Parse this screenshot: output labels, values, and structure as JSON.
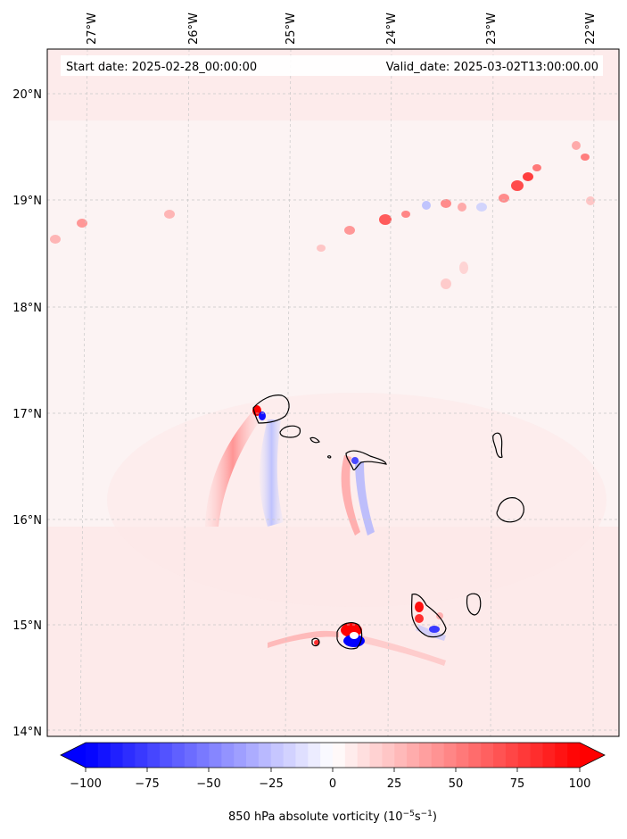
{
  "map": {
    "start_label": "Start date: 2025-02-28_00:00:00",
    "valid_label": "Valid_date: 2025-03-02T13:00:00.00",
    "longitude_labels": [
      "27°W",
      "26°W",
      "25°W",
      "24°W",
      "23°W",
      "22°W"
    ],
    "latitude_labels": [
      "20°N",
      "19°N",
      "18°N",
      "17°N",
      "16°N",
      "15°N",
      "14°N"
    ],
    "colors": {
      "negative": "#0000ff",
      "neutral": "#ffffff",
      "positive": "#ff0000",
      "background_tint": "#fcf1f1",
      "coastline": "#000000"
    },
    "features": [
      "Santo Antão",
      "São Vicente",
      "Santa Luzia",
      "São Nicolau",
      "Sal",
      "Boa Vista",
      "Maio",
      "Santiago",
      "Fogo",
      "Brava"
    ]
  },
  "colorbar": {
    "ticks": [
      "−100",
      "−75",
      "−50",
      "−25",
      "0",
      "25",
      "50",
      "75",
      "100"
    ],
    "min": -100,
    "max": 100,
    "label_prefix": "850 hPa absolute vorticity (10",
    "label_exp1": "−5",
    "label_mid": "s",
    "label_exp2": "−1",
    "label_suffix": ")"
  }
}
